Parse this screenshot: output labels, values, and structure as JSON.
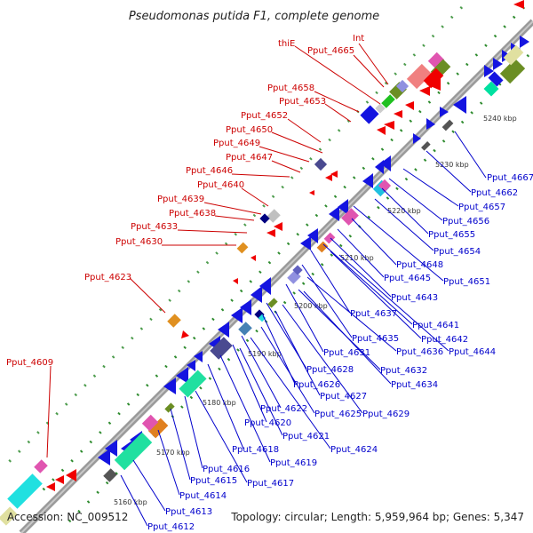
{
  "title": "Pseudomonas putida F1, complete genome",
  "footer": {
    "accession": "Accession: NC_009512",
    "stats": "Topology: circular; Length: 5,959,964 bp; Genes: 5,347"
  },
  "colors": {
    "backbone": "#8a8a8a",
    "label_forward": "#cc0000",
    "label_reverse": "#0000cc",
    "tick_dots": "#2e8b2e",
    "tick_text": "#333333"
  },
  "scale_ticks": [
    "5160 kbp",
    "5170 kbp",
    "5180 kbp",
    "5190 kbp",
    "5200 kbp",
    "5210 kbp",
    "5220 kbp",
    "5230 kbp",
    "5240 kbp"
  ],
  "red_labels": [
    "Int",
    "thiE",
    "Pput_4665",
    "Pput_4658",
    "Pput_4653",
    "Pput_4652",
    "Pput_4650",
    "Pput_4649",
    "Pput_4647",
    "Pput_4646",
    "Pput_4640",
    "Pput_4639",
    "Pput_4638",
    "Pput_4633",
    "Pput_4630",
    "Pput_4623",
    "Pput_4609"
  ],
  "blue_labels": [
    "Pput_4667",
    "Pput_4662",
    "Pput_4657",
    "Pput_4656",
    "Pput_4655",
    "Pput_4654",
    "Pput_4651",
    "Pput_4648",
    "Pput_4645",
    "Pput_4643",
    "Pput_4637",
    "Pput_4641",
    "Pput_4635",
    "Pput_4642",
    "Pput_4636",
    "Pput_4644",
    "Pput_4631",
    "Pput_4632",
    "Pput_4628",
    "Pput_4634",
    "Pput_4626",
    "Pput_4627",
    "Pput_4629",
    "Pput_4625",
    "Pput_4622",
    "Pput_4620",
    "Pput_4621",
    "Pput_4624",
    "Pput_4618",
    "Pput_4619",
    "Pput_4616",
    "Pput_4617",
    "Pput_4615",
    "Pput_4614",
    "Pput_4613",
    "Pput_4612"
  ]
}
